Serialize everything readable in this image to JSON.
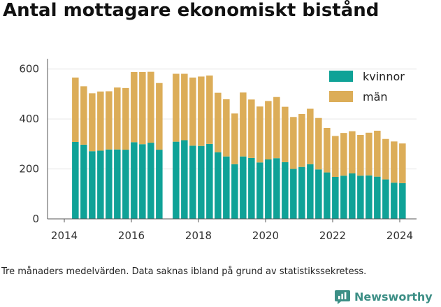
{
  "title": "Antal mottagare ekonomiskt bistånd",
  "footnote": "Tre månaders medelvärden. Data saknas ibland på grund av statistikssekretess.",
  "brand": {
    "name": "Newsworthy",
    "color": "#3d8f86"
  },
  "chart_data": {
    "type": "bar",
    "stacked": true,
    "x_axis": {
      "ticks": [
        "2014",
        "2016",
        "2018",
        "2020",
        "2022",
        "2024"
      ],
      "range": [
        2013.5,
        2024.5
      ]
    },
    "y_axis": {
      "ticks": [
        "0",
        "200",
        "400",
        "600"
      ],
      "range": [
        0,
        630
      ]
    },
    "grid": "horizontal",
    "legend_position": "top-right",
    "x": [
      2014.33,
      2014.58,
      2014.83,
      2015.08,
      2015.33,
      2015.58,
      2015.83,
      2016.08,
      2016.33,
      2016.58,
      2016.83,
      2017.33,
      2017.58,
      2017.83,
      2018.08,
      2018.33,
      2018.58,
      2018.83,
      2019.08,
      2019.33,
      2019.58,
      2019.83,
      2020.08,
      2020.33,
      2020.58,
      2020.83,
      2021.08,
      2021.33,
      2021.58,
      2021.83,
      2022.08,
      2022.33,
      2022.58,
      2022.83,
      2023.08,
      2023.33,
      2023.58,
      2023.83,
      2024.08
    ],
    "series": [
      {
        "name": "kvinnor",
        "color": "#0fa297",
        "values": [
          308,
          297,
          271,
          273,
          278,
          278,
          277,
          307,
          299,
          305,
          277,
          309,
          315,
          293,
          292,
          300,
          267,
          250,
          219,
          250,
          244,
          226,
          238,
          243,
          227,
          200,
          208,
          219,
          198,
          186,
          168,
          173,
          182,
          173,
          174,
          169,
          158,
          145,
          143
        ]
      },
      {
        "name": "män",
        "color": "#dcad58",
        "values": [
          258,
          234,
          232,
          237,
          233,
          248,
          247,
          281,
          289,
          284,
          267,
          272,
          266,
          273,
          278,
          274,
          238,
          229,
          203,
          256,
          234,
          224,
          234,
          245,
          222,
          208,
          212,
          222,
          206,
          178,
          164,
          171,
          169,
          163,
          171,
          184,
          162,
          165,
          159
        ]
      }
    ]
  }
}
